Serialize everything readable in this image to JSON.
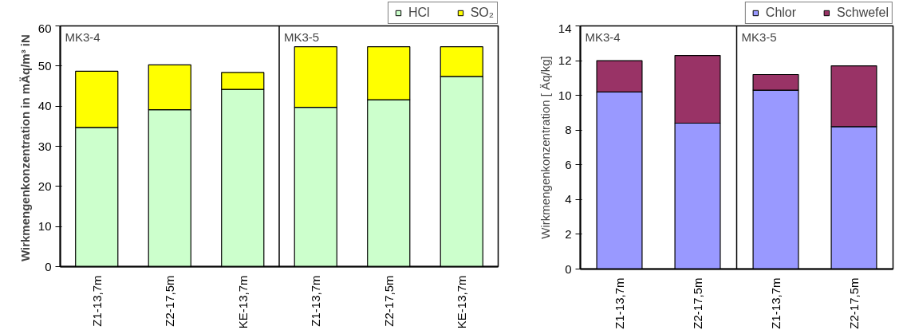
{
  "chart_data": [
    {
      "type": "bar",
      "stacked": true,
      "ylabel": "Wirkmengenkonzentration  in mÄq/m³ iN",
      "categories": [
        "Z1-13,7m",
        "Z2-17,5m",
        "KE-13,7m",
        "Z1-13,7m",
        "Z2-17,5m",
        "KE-13,7m"
      ],
      "series": [
        {
          "name": "HCl",
          "color": "#ccffcc",
          "values": [
            34.7,
            39.1,
            44.2,
            39.7,
            41.6,
            47.4
          ]
        },
        {
          "name": "SO₂",
          "color": "#ffff00",
          "values": [
            14.0,
            11.2,
            4.2,
            15.1,
            13.2,
            7.4
          ]
        }
      ],
      "ylim": [
        0,
        60
      ],
      "yticks": [
        0,
        10,
        20,
        30,
        40,
        50,
        60
      ],
      "grid": false,
      "legend": "top right",
      "annotations": [
        "MK3-4",
        "MK3-5"
      ]
    },
    {
      "type": "bar",
      "stacked": true,
      "ylabel": "Wirkmengenkonzentration [ Äq/kg]",
      "categories": [
        "Z1-13,7m",
        "Z2-17,5m",
        "Z1-13,7m",
        "Z2-17,5m"
      ],
      "series": [
        {
          "name": "Chlor",
          "color": "#9999ff",
          "values": [
            10.2,
            8.4,
            10.3,
            8.2
          ]
        },
        {
          "name": "Schwefel",
          "color": "#993366",
          "values": [
            1.8,
            3.9,
            0.9,
            3.5
          ]
        }
      ],
      "ylim": [
        0,
        14
      ],
      "yticks": [
        0,
        2,
        4,
        6,
        8,
        10,
        12,
        14
      ],
      "grid": false,
      "legend": "top right",
      "annotations": [
        "MK3-4",
        "MK3-5"
      ]
    }
  ]
}
